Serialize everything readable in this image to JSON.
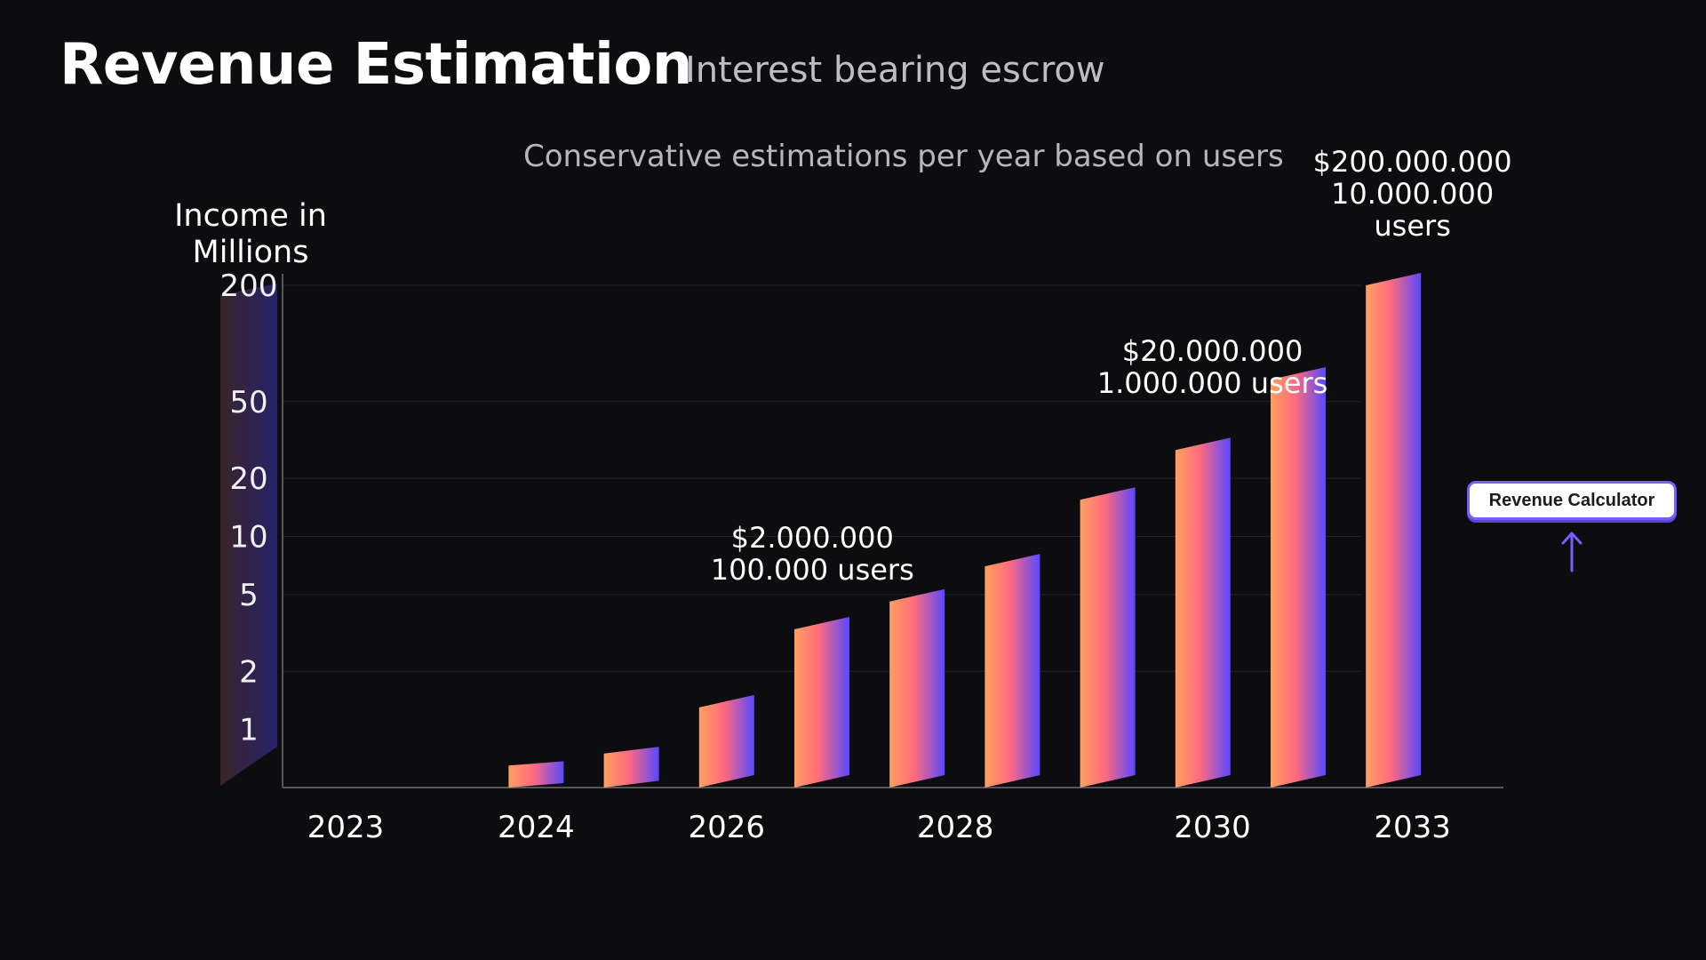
{
  "header": {
    "title": "Revenue Estimation",
    "subtitle": "Interest bearing escrow"
  },
  "calculator": {
    "label": "Revenue Calculator",
    "arrow_icon": "arrow-up-icon",
    "accent_color": "#7a5cff"
  },
  "chart_data": {
    "type": "bar",
    "title": "Conservative estimations per year based on users",
    "ylabel_lines": [
      "Income in",
      "Millions"
    ],
    "xlabel": "",
    "y_scale": "log",
    "ylim": [
      0.5,
      250
    ],
    "yticks": [
      1,
      2,
      5,
      10,
      20,
      50,
      200
    ],
    "ytick_labels": [
      "1",
      "2",
      "5",
      "10",
      "20",
      "50",
      "200"
    ],
    "x_tick_labels": [
      "2023",
      "2024",
      "2026",
      "2028",
      "2030",
      "2033"
    ],
    "x_tick_positions": [
      1,
      3,
      5,
      7.4,
      10.1,
      12.2
    ],
    "bar_positions": [
      3,
      4,
      5,
      6,
      7,
      8,
      9,
      10,
      11,
      12
    ],
    "values": [
      0.65,
      0.75,
      1.3,
      3.3,
      4.6,
      7,
      15.5,
      28,
      65,
      200
    ],
    "gradient_colors": [
      "#ffa060",
      "#ff6a80",
      "#5848ff"
    ],
    "annotations": [
      {
        "x": 5.9,
        "lines": [
          "$2.000.000",
          "100.000 users"
        ]
      },
      {
        "x": 10.1,
        "lines": [
          "$20.000.000",
          "1.000.000 users"
        ]
      },
      {
        "x": 12.2,
        "lines": [
          "$200.000.000",
          "10.000.000",
          "users"
        ]
      }
    ]
  }
}
